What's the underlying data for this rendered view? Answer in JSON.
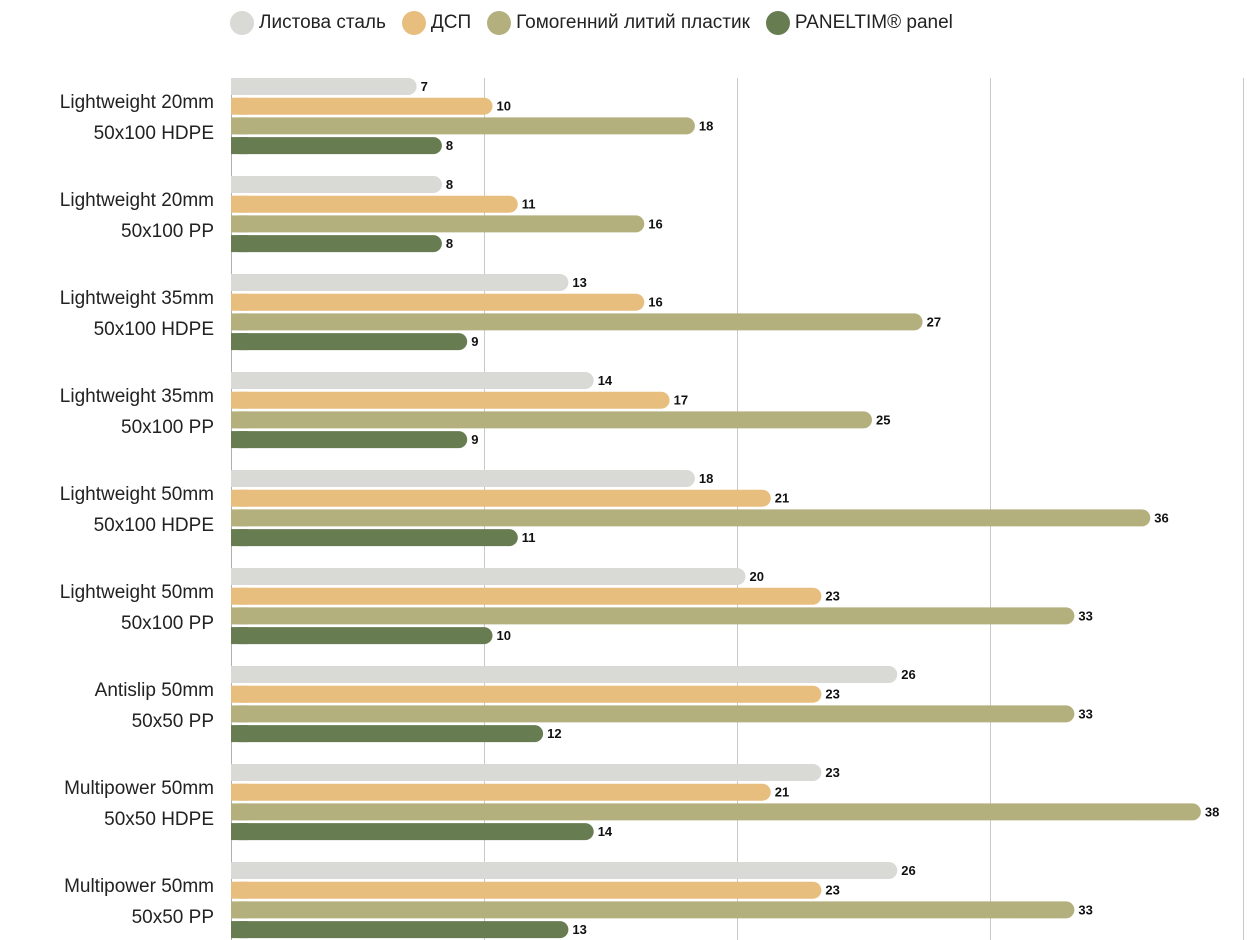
{
  "chart_data": {
    "type": "bar",
    "orientation": "horizontal",
    "grid": true,
    "legend_position": "top",
    "categories": [
      [
        "Lightweight 20mm",
        "50x100 HDPE"
      ],
      [
        "Lightweight 20mm",
        "50x100 PP"
      ],
      [
        "Lightweight 35mm",
        "50x100 HDPE"
      ],
      [
        "Lightweight 35mm",
        "50x100 PP"
      ],
      [
        "Lightweight 50mm",
        "50x100 HDPE"
      ],
      [
        "Lightweight 50mm",
        "50x100 PP"
      ],
      [
        "Antislip 50mm",
        "50x50 PP"
      ],
      [
        "Multipower 50mm",
        "50x50 HDPE"
      ],
      [
        "Multipower 50mm",
        "50x50 PP"
      ]
    ],
    "series": [
      {
        "name": "Листова сталь",
        "color": "#d9d9d6",
        "values": [
          7,
          8,
          13,
          14,
          18,
          20,
          26,
          23,
          26
        ]
      },
      {
        "name": "ДСП",
        "color": "#e8be7e",
        "values": [
          10,
          11,
          16,
          17,
          21,
          23,
          23,
          21,
          23
        ]
      },
      {
        "name": "Гомогенний литий пластик",
        "color": "#b3b07e",
        "values": [
          18,
          16,
          27,
          25,
          36,
          33,
          33,
          38,
          33
        ]
      },
      {
        "name": "PANELTIM® panel",
        "color": "#677d51",
        "values": [
          8,
          8,
          9,
          9,
          11,
          10,
          12,
          14,
          13
        ]
      }
    ],
    "xlim": [
      0,
      40
    ],
    "grid_color": "#c8c8c8"
  }
}
